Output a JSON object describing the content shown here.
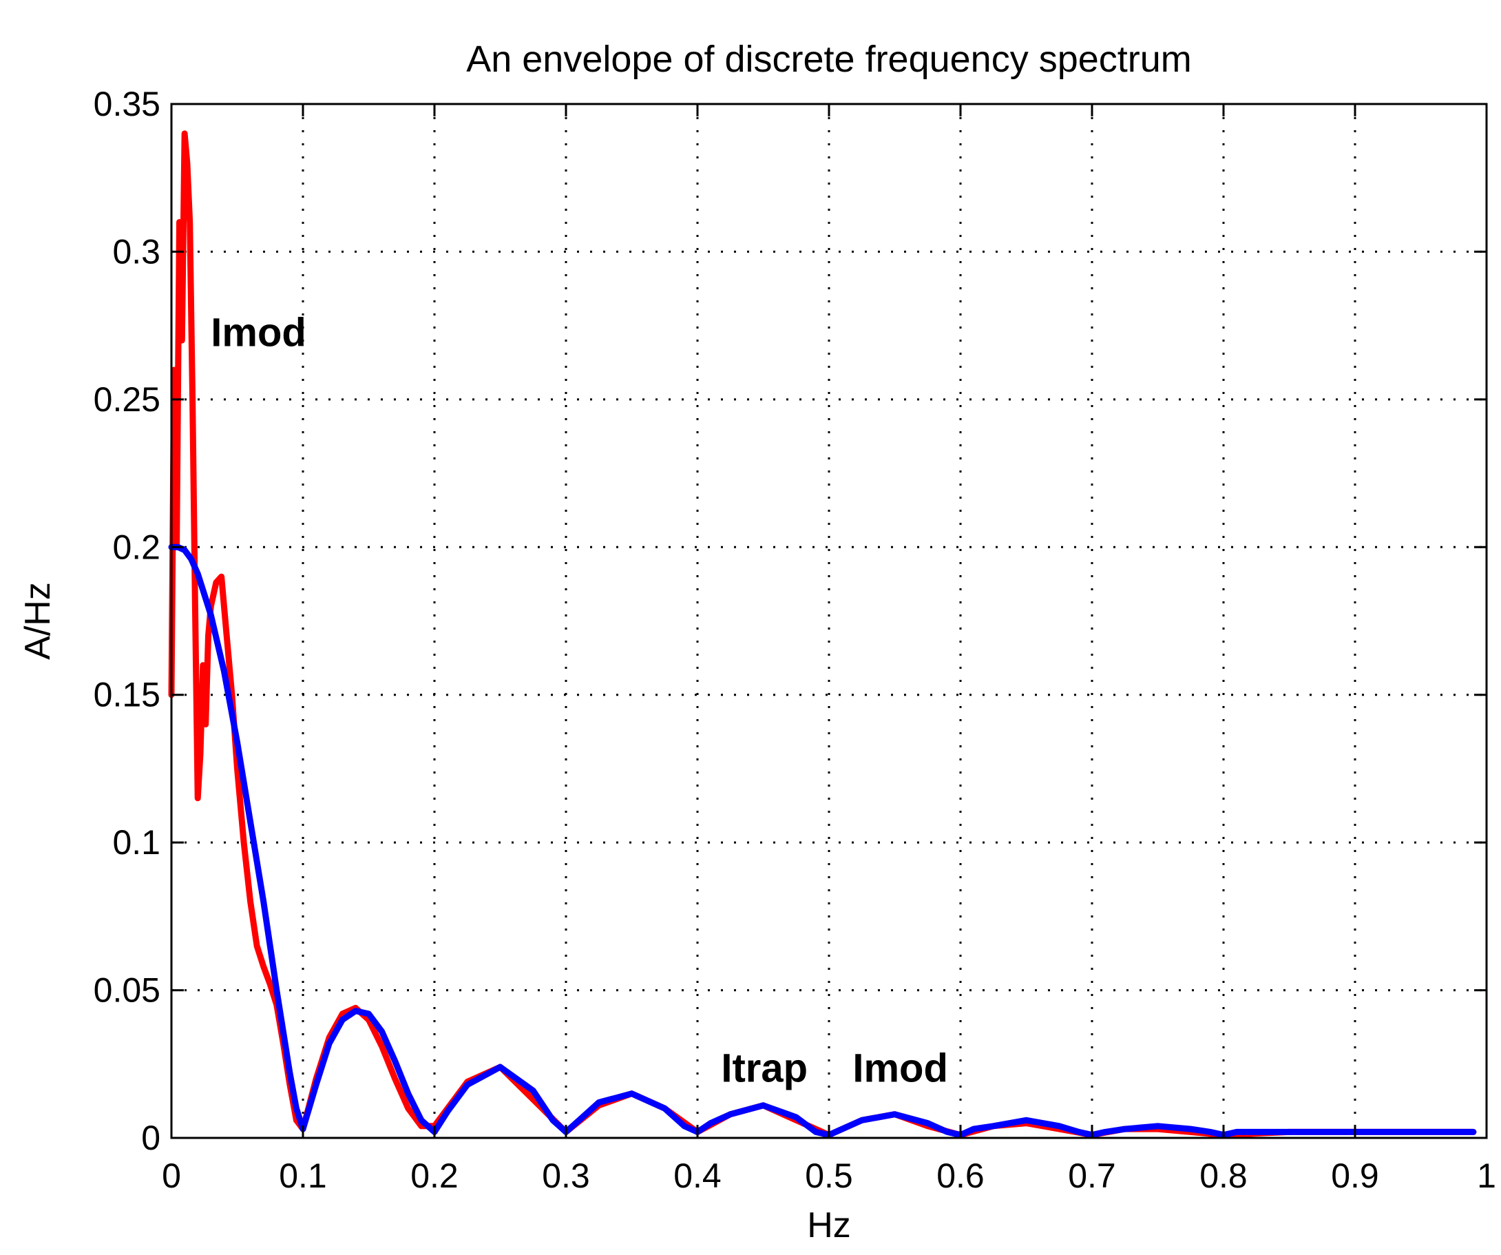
{
  "chart_data": {
    "type": "line",
    "title": "An envelope of discrete frequency spectrum",
    "xlabel": "Hz",
    "ylabel": "A/Hz",
    "xlim": [
      0,
      1
    ],
    "ylim": [
      0,
      0.35
    ],
    "grid": true,
    "x_ticks": [
      "0",
      "0.1",
      "0.2",
      "0.3",
      "0.4",
      "0.5",
      "0.6",
      "0.7",
      "0.8",
      "0.9",
      "1"
    ],
    "y_ticks": [
      "0",
      "0.05",
      "0.1",
      "0.15",
      "0.2",
      "0.25",
      "0.3",
      "0.35"
    ],
    "series": [
      {
        "color": "#ff0000",
        "x": [
          0.0,
          0.002,
          0.004,
          0.006,
          0.008,
          0.01,
          0.012,
          0.014,
          0.016,
          0.018,
          0.02,
          0.022,
          0.024,
          0.026,
          0.028,
          0.03,
          0.034,
          0.038,
          0.042,
          0.046,
          0.05,
          0.055,
          0.06,
          0.065,
          0.07,
          0.075,
          0.08,
          0.085,
          0.09,
          0.095,
          0.1,
          0.11,
          0.12,
          0.13,
          0.14,
          0.15,
          0.16,
          0.17,
          0.18,
          0.19,
          0.2,
          0.225,
          0.25,
          0.275,
          0.3,
          0.325,
          0.35,
          0.375,
          0.4,
          0.425,
          0.45,
          0.475,
          0.5,
          0.525,
          0.55,
          0.575,
          0.6,
          0.625,
          0.65,
          0.675,
          0.7,
          0.725,
          0.75,
          0.775,
          0.8,
          0.85,
          0.9,
          0.95,
          0.99
        ],
        "y": [
          0.15,
          0.26,
          0.2,
          0.31,
          0.27,
          0.34,
          0.33,
          0.31,
          0.25,
          0.18,
          0.115,
          0.13,
          0.16,
          0.14,
          0.17,
          0.18,
          0.188,
          0.19,
          0.17,
          0.15,
          0.125,
          0.1,
          0.08,
          0.065,
          0.058,
          0.052,
          0.045,
          0.032,
          0.018,
          0.006,
          0.003,
          0.02,
          0.034,
          0.042,
          0.044,
          0.04,
          0.031,
          0.02,
          0.01,
          0.004,
          0.004,
          0.019,
          0.024,
          0.013,
          0.002,
          0.011,
          0.015,
          0.01,
          0.002,
          0.008,
          0.011,
          0.006,
          0.001,
          0.006,
          0.008,
          0.004,
          0.001,
          0.004,
          0.005,
          0.003,
          0.001,
          0.003,
          0.003,
          0.002,
          0.001,
          0.002,
          0.002,
          0.002,
          0.002
        ]
      },
      {
        "color": "#0000ff",
        "x": [
          0.0,
          0.005,
          0.01,
          0.015,
          0.02,
          0.03,
          0.04,
          0.05,
          0.06,
          0.07,
          0.08,
          0.09,
          0.095,
          0.1,
          0.11,
          0.12,
          0.13,
          0.14,
          0.15,
          0.16,
          0.17,
          0.18,
          0.19,
          0.2,
          0.21,
          0.225,
          0.25,
          0.275,
          0.29,
          0.3,
          0.31,
          0.325,
          0.35,
          0.375,
          0.39,
          0.4,
          0.41,
          0.425,
          0.45,
          0.475,
          0.49,
          0.5,
          0.51,
          0.525,
          0.55,
          0.575,
          0.59,
          0.6,
          0.61,
          0.625,
          0.65,
          0.675,
          0.69,
          0.7,
          0.71,
          0.725,
          0.75,
          0.775,
          0.79,
          0.8,
          0.81,
          0.825,
          0.85,
          0.875,
          0.9,
          0.95,
          0.99
        ],
        "y": [
          0.2,
          0.2,
          0.199,
          0.196,
          0.191,
          0.177,
          0.158,
          0.134,
          0.107,
          0.08,
          0.05,
          0.022,
          0.01,
          0.003,
          0.018,
          0.032,
          0.04,
          0.043,
          0.042,
          0.036,
          0.026,
          0.015,
          0.006,
          0.002,
          0.009,
          0.018,
          0.024,
          0.016,
          0.006,
          0.002,
          0.006,
          0.012,
          0.015,
          0.01,
          0.004,
          0.002,
          0.005,
          0.008,
          0.011,
          0.007,
          0.002,
          0.001,
          0.003,
          0.006,
          0.008,
          0.005,
          0.002,
          0.001,
          0.003,
          0.004,
          0.006,
          0.004,
          0.002,
          0.001,
          0.002,
          0.003,
          0.004,
          0.003,
          0.002,
          0.001,
          0.002,
          0.002,
          0.002,
          0.002,
          0.002,
          0.002,
          0.002
        ]
      }
    ],
    "annotations": [
      {
        "text": "Imod",
        "x": 0.03,
        "y": 0.268
      },
      {
        "text": "Itrap",
        "x": 0.418,
        "y": 0.019
      },
      {
        "text": "Imod",
        "x": 0.518,
        "y": 0.019
      }
    ]
  }
}
